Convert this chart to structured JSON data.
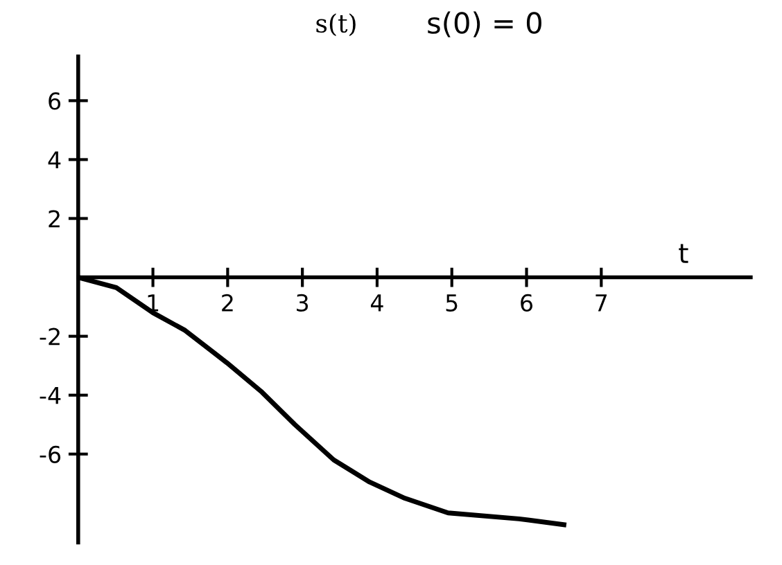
{
  "chart_data": {
    "type": "line",
    "title": "s(t)",
    "xlabel": "t",
    "annotations": [
      "s(0) = 0"
    ],
    "x": [
      0,
      0.51,
      1.0,
      1.43,
      1.99,
      2.46,
      2.9,
      3.42,
      3.9,
      4.37,
      4.95,
      5.9,
      6.5
    ],
    "series": [
      {
        "color": "#000000",
        "values": [
          0,
          -0.35,
          -1.2,
          -1.8,
          -2.9,
          -3.9,
          -5.0,
          -6.2,
          -6.95,
          -7.5,
          -8.0,
          -8.2,
          -8.4
        ]
      }
    ],
    "xlim": [
      0,
      9
    ],
    "ylim": [
      -9,
      7.5
    ],
    "xticks": [
      1,
      2,
      3,
      4,
      5,
      6,
      7
    ],
    "yticks": [
      -6,
      -4,
      -2,
      2,
      4,
      6
    ],
    "grid": false,
    "legend": false,
    "marker": "none",
    "line_style": "solid"
  }
}
